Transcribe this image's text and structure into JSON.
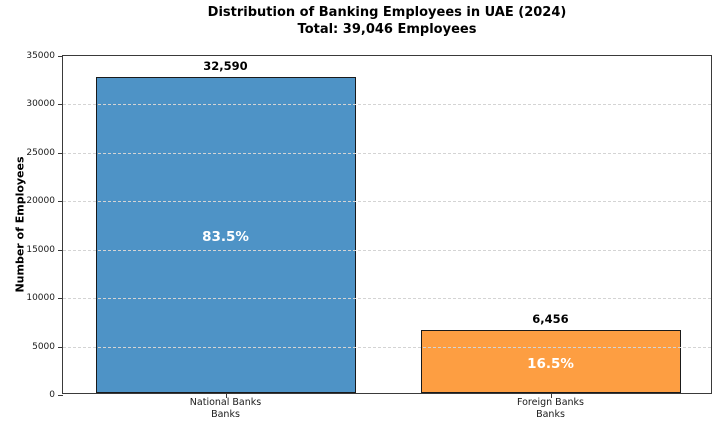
{
  "page": {
    "background": "#ffffff"
  },
  "chart_data": {
    "type": "bar",
    "title": "Distribution of Banking Employees in UAE (2024)",
    "subtitle": "Total: 39,046 Employees",
    "ylabel": "Number of Employees",
    "xlabel": "",
    "categories": [
      [
        "National Banks",
        "Banks"
      ],
      [
        "Foreign Banks",
        "Banks"
      ]
    ],
    "values": [
      32590,
      6456
    ],
    "value_labels": [
      "32,590",
      "6,456"
    ],
    "pct_labels": [
      "83.5%",
      "16.5%"
    ],
    "total_employees": 39046,
    "ylim": [
      0,
      35000
    ],
    "yticks": [
      0,
      5000,
      10000,
      15000,
      20000,
      25000,
      30000,
      35000
    ],
    "ytick_labels": [
      "0",
      "5000",
      "10000",
      "15000",
      "20000",
      "25000",
      "30000",
      "35000"
    ],
    "grid": "horizontal-dashed",
    "legend": "none",
    "colors": {
      "bars": [
        "#4e93c6",
        "#fd9e42"
      ],
      "bar_edge": "#1a1a1a",
      "grid_color": "#d4d4d4",
      "pct_text": "#ffffff",
      "value_text": "#000000",
      "axis_text": "#1a1a1a"
    }
  }
}
